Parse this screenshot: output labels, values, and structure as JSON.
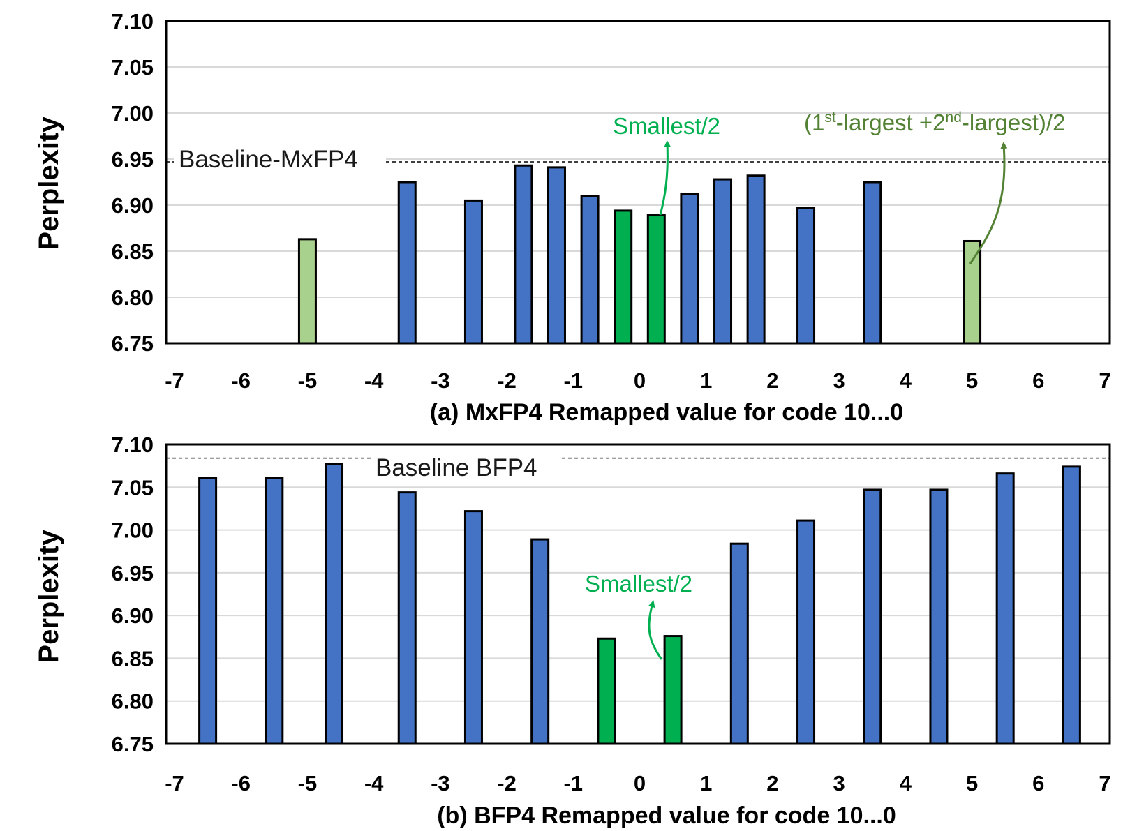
{
  "colors": {
    "blue": "#4472C4",
    "green": "#00B050",
    "light_green": "#A9D18E",
    "annot_green": "#00B050",
    "annot_dark_green": "#548235",
    "grid": "#d9d9d9"
  },
  "chart_data": [
    {
      "type": "bar",
      "panel": "a",
      "ylabel": "Perplexity",
      "xlabel": "(a) MxFP4 Remapped value for code 10...0",
      "ylim": [
        6.75,
        7.1
      ],
      "yticks": [
        "6.75",
        "6.80",
        "6.85",
        "6.90",
        "6.95",
        "7.00",
        "7.05",
        "7.10"
      ],
      "xlim": [
        -7,
        7
      ],
      "xticks": [
        "-7",
        "-6",
        "-5",
        "-4",
        "-3",
        "-2",
        "-1",
        "0",
        "1",
        "2",
        "3",
        "4",
        "5",
        "6",
        "7"
      ],
      "grid": true,
      "baseline": {
        "label": "Baseline-MxFP4",
        "value": 6.947
      },
      "points": [
        {
          "x": -5,
          "y": 6.863,
          "color": "light_green"
        },
        {
          "x": -3.5,
          "y": 6.925,
          "color": "blue"
        },
        {
          "x": -2.5,
          "y": 6.905,
          "color": "blue"
        },
        {
          "x": -1.75,
          "y": 6.943,
          "color": "blue"
        },
        {
          "x": -1.25,
          "y": 6.941,
          "color": "blue"
        },
        {
          "x": -0.75,
          "y": 6.91,
          "color": "blue"
        },
        {
          "x": -0.25,
          "y": 6.894,
          "color": "green"
        },
        {
          "x": 0.25,
          "y": 6.889,
          "color": "green"
        },
        {
          "x": 0.75,
          "y": 6.912,
          "color": "blue"
        },
        {
          "x": 1.25,
          "y": 6.928,
          "color": "blue"
        },
        {
          "x": 1.75,
          "y": 6.932,
          "color": "blue"
        },
        {
          "x": 2.5,
          "y": 6.897,
          "color": "blue"
        },
        {
          "x": 3.5,
          "y": 6.925,
          "color": "blue"
        },
        {
          "x": 5,
          "y": 6.861,
          "color": "light_green"
        }
      ],
      "annotations": {
        "smallest": "Smallest/2",
        "largest_pre": "(1",
        "largest_sup1": "st",
        "largest_mid": "-largest +2",
        "largest_sup2": "nd",
        "largest_post": "-largest)/2"
      }
    },
    {
      "type": "bar",
      "panel": "b",
      "ylabel": "Perplexity",
      "xlabel": "(b) BFP4 Remapped value for code 10...0",
      "ylim": [
        6.75,
        7.1
      ],
      "yticks": [
        "6.75",
        "6.80",
        "6.85",
        "6.90",
        "6.95",
        "7.00",
        "7.05",
        "7.10"
      ],
      "xlim": [
        -7,
        7
      ],
      "xticks": [
        "-7",
        "-6",
        "-5",
        "-4",
        "-3",
        "-2",
        "-1",
        "0",
        "1",
        "2",
        "3",
        "4",
        "5",
        "6",
        "7"
      ],
      "grid": true,
      "baseline": {
        "label": "Baseline BFP4",
        "value": 7.084
      },
      "points": [
        {
          "x": -6.5,
          "y": 7.061,
          "color": "blue"
        },
        {
          "x": -5.5,
          "y": 7.061,
          "color": "blue"
        },
        {
          "x": -4.6,
          "y": 7.077,
          "color": "blue"
        },
        {
          "x": -3.5,
          "y": 7.044,
          "color": "blue"
        },
        {
          "x": -2.5,
          "y": 7.022,
          "color": "blue"
        },
        {
          "x": -1.5,
          "y": 6.989,
          "color": "blue"
        },
        {
          "x": -0.5,
          "y": 6.873,
          "color": "green"
        },
        {
          "x": 0.5,
          "y": 6.876,
          "color": "green"
        },
        {
          "x": 1.5,
          "y": 6.984,
          "color": "blue"
        },
        {
          "x": 2.5,
          "y": 7.011,
          "color": "blue"
        },
        {
          "x": 3.5,
          "y": 7.047,
          "color": "blue"
        },
        {
          "x": 4.5,
          "y": 7.047,
          "color": "blue"
        },
        {
          "x": 5.5,
          "y": 7.066,
          "color": "blue"
        },
        {
          "x": 6.5,
          "y": 7.074,
          "color": "blue"
        }
      ],
      "annotations": {
        "smallest": "Smallest/2"
      }
    }
  ]
}
